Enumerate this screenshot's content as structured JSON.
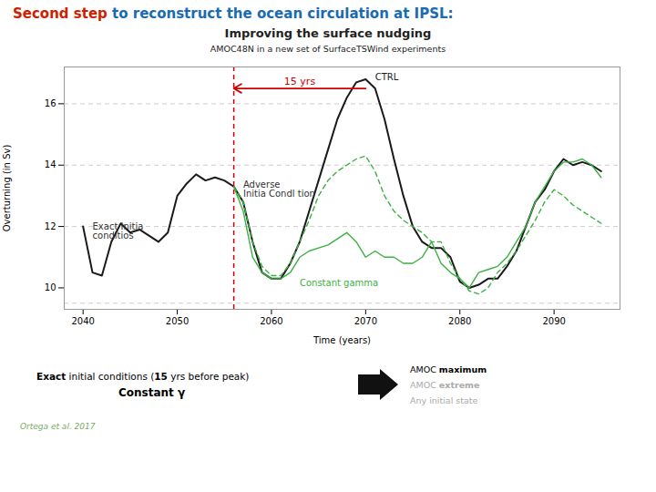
{
  "chart_data": {
    "type": "line",
    "title": [
      {
        "text": "Second step",
        "color": "#cc2200"
      },
      {
        "text": " to reconstruct the ocean circulation at IPSL:",
        "color": "#1a6bb0"
      }
    ],
    "subtitle": [
      "Improving the surface nudging",
      "AMOC48N in a new set of SurfaceTSWind experiments"
    ],
    "xlabel": "Time (years)",
    "ylabel": "Overturning (in Sv)",
    "xlim": [
      2038,
      2097
    ],
    "ylim": [
      9.3,
      17.2
    ],
    "xticks": [
      2040,
      2050,
      2060,
      2070,
      2080,
      2090
    ],
    "yticks": [
      10,
      12,
      14,
      16
    ],
    "series": [
      {
        "color": "#1a1a1a",
        "line_style": "solid",
        "x": [
          2040,
          2041,
          2042,
          2043,
          2044,
          2045,
          2046,
          2047,
          2048,
          2049,
          2050,
          2051,
          2052,
          2053,
          2054,
          2055,
          2056,
          2057,
          2058,
          2059,
          2060,
          2061,
          2062,
          2063,
          2064,
          2065,
          2066,
          2067,
          2068,
          2069,
          2070,
          2071,
          2072,
          2073,
          2074,
          2075,
          2076,
          2077,
          2078,
          2079,
          2080,
          2081,
          2082,
          2083,
          2084,
          2085,
          2086,
          2087,
          2088,
          2089,
          2090,
          2091,
          2092,
          2093,
          2094,
          2095
        ],
        "values": [
          12.0,
          10.5,
          10.4,
          11.5,
          12.1,
          11.8,
          11.9,
          11.7,
          11.5,
          11.8,
          13.0,
          13.4,
          13.7,
          13.5,
          13.6,
          13.5,
          13.3,
          12.8,
          11.5,
          10.5,
          10.3,
          10.3,
          10.8,
          11.5,
          12.5,
          13.5,
          14.5,
          15.5,
          16.2,
          16.7,
          16.8,
          16.5,
          15.5,
          14.2,
          13.0,
          12.0,
          11.5,
          11.3,
          11.3,
          11.0,
          10.2,
          10.0,
          10.1,
          10.3,
          10.3,
          10.7,
          11.2,
          12.0,
          12.8,
          13.2,
          13.8,
          14.2,
          14.0,
          14.1,
          14.0,
          13.8
        ]
      },
      {
        "color": "#3cb043",
        "line_style": "solid",
        "x": [
          2056,
          2057,
          2058,
          2059,
          2060,
          2061,
          2062,
          2063,
          2064,
          2065,
          2066,
          2067,
          2068,
          2069,
          2070,
          2071,
          2072,
          2073,
          2074,
          2075,
          2076,
          2077,
          2078,
          2079,
          2080,
          2081,
          2082,
          2083,
          2084,
          2085,
          2086,
          2087,
          2088,
          2089,
          2090,
          2091,
          2092,
          2093,
          2094,
          2095
        ],
        "values": [
          13.3,
          12.5,
          11.0,
          10.5,
          10.3,
          10.3,
          10.5,
          11.0,
          11.2,
          11.3,
          11.4,
          11.6,
          11.8,
          11.5,
          11.0,
          11.2,
          11.0,
          11.0,
          10.8,
          10.8,
          11.0,
          11.5,
          10.8,
          10.5,
          10.3,
          10.0,
          10.5,
          10.6,
          10.7,
          11.0,
          11.5,
          12.0,
          12.8,
          13.3,
          13.8,
          14.1,
          14.1,
          14.2,
          14.0,
          13.6
        ]
      },
      {
        "color": "#3cb043",
        "line_style": "dashed",
        "x": [
          2056,
          2057,
          2058,
          2059,
          2060,
          2061,
          2062,
          2063,
          2064,
          2065,
          2066,
          2067,
          2068,
          2069,
          2070,
          2071,
          2072,
          2073,
          2074,
          2075,
          2076,
          2077,
          2078,
          2079,
          2080,
          2081,
          2082,
          2083,
          2084,
          2085,
          2086,
          2087,
          2088,
          2089,
          2090,
          2091,
          2092,
          2093,
          2094,
          2095
        ],
        "values": [
          13.3,
          12.8,
          11.5,
          10.7,
          10.4,
          10.4,
          10.8,
          11.5,
          12.2,
          13.0,
          13.5,
          13.8,
          14.0,
          14.2,
          14.3,
          13.8,
          13.0,
          12.5,
          12.2,
          12.0,
          11.8,
          11.5,
          11.5,
          10.8,
          10.3,
          9.9,
          9.8,
          10.0,
          10.5,
          10.8,
          11.2,
          11.7,
          12.2,
          12.8,
          13.2,
          13.0,
          12.7,
          12.5,
          12.3,
          12.1
        ]
      }
    ],
    "reference_lines": [
      {
        "axis": "y",
        "values": [
          9.5,
          12.0,
          14.0,
          16.0
        ],
        "color": "#c0c0c0",
        "line_style": "dashed"
      },
      {
        "axis": "x",
        "values": [
          2056
        ],
        "color": "#cc0000",
        "line_style": "dashed"
      }
    ],
    "annotations": [
      {
        "type": "arrow",
        "x_start": 2070,
        "x_end": 2056,
        "y": 16.5,
        "text": "15 yrs",
        "color": "#cc0000"
      },
      {
        "type": "text",
        "x": 2071,
        "y": 16.85,
        "text": "CTRL",
        "color": "#1a1a1a"
      },
      {
        "type": "text",
        "x": 2063,
        "y": 10.15,
        "text": "Constant gamma",
        "color": "#3cb043"
      },
      {
        "type": "text",
        "x": 2057.0,
        "y": 13.2,
        "text": "Adverse\nInitia Condl tion",
        "color": "#333333"
      },
      {
        "type": "text",
        "x": 2041.0,
        "y": 11.85,
        "text": "Exact Initia\nconditios",
        "color": "#333333"
      }
    ],
    "footer": {
      "left": [
        {
          "color": "#000000",
          "parts": [
            {
              "text": "Exact",
              "bold": true
            },
            {
              "text": " initial conditions ("
            },
            {
              "text": "15",
              "bold": true
            },
            {
              "text": " yrs before peak)"
            }
          ]
        },
        {
          "color": "#000000",
          "parts": [
            {
              "text": "Constant γ",
              "bold": true
            }
          ]
        }
      ],
      "right": [
        {
          "color": "#000000",
          "parts": [
            {
              "text": "AMOC "
            },
            {
              "text": "maximum",
              "bold": true
            }
          ]
        },
        {
          "color": "#aaaaaa",
          "parts": [
            {
              "text": "AMOC "
            },
            {
              "text": "extreme",
              "bold": true
            }
          ]
        },
        {
          "color": "#aaaaaa",
          "parts": [
            {
              "text": "Any initial state"
            }
          ]
        }
      ]
    },
    "citation": {
      "text": "Ortega et al. 2017",
      "color": "#7aaa64"
    }
  }
}
